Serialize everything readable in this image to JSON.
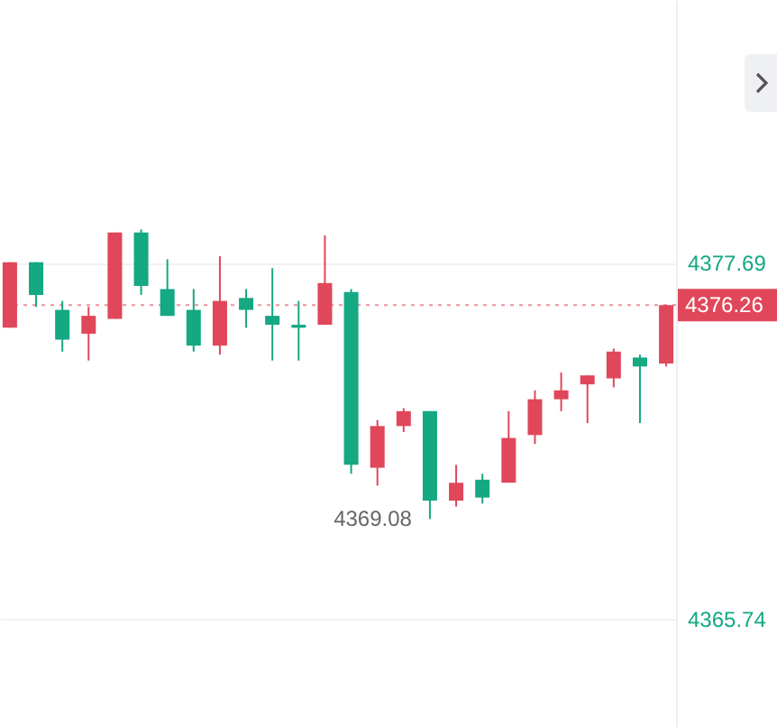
{
  "chart_data": {
    "type": "candlestick",
    "categories": [
      null,
      null,
      null,
      null,
      null,
      null,
      null,
      null,
      null,
      null,
      null,
      null,
      null,
      null,
      null,
      null,
      null,
      null,
      null,
      null,
      null,
      null,
      null,
      null,
      null,
      null
    ],
    "ohlc": [
      [
        4375.5,
        4377.7,
        4375.5,
        4377.7
      ],
      [
        4377.7,
        4377.7,
        4376.2,
        4376.6
      ],
      [
        4376.1,
        4376.4,
        4374.7,
        4375.1
      ],
      [
        4375.3,
        4376.2,
        4374.4,
        4375.9
      ],
      [
        4375.8,
        4378.7,
        4375.8,
        4378.7
      ],
      [
        4378.7,
        4378.8,
        4376.6,
        4376.9
      ],
      [
        4376.8,
        4377.8,
        4375.9,
        4375.9
      ],
      [
        4376.1,
        4376.8,
        4374.7,
        4374.9
      ],
      [
        4374.9,
        4377.9,
        4374.6,
        4376.4
      ],
      [
        4376.5,
        4376.8,
        4375.5,
        4376.1
      ],
      [
        4375.9,
        4377.5,
        4374.4,
        4375.6
      ],
      [
        4375.6,
        4376.4,
        4374.4,
        4375.5
      ],
      [
        4375.6,
        4378.6,
        4375.6,
        4377.0
      ],
      [
        4376.7,
        4376.8,
        4370.6,
        4370.9
      ],
      [
        4370.8,
        4372.4,
        4370.2,
        4372.2
      ],
      [
        4372.2,
        4372.8,
        4372.0,
        4372.7
      ],
      [
        4372.7,
        4372.7,
        4369.08,
        4369.7
      ],
      [
        4369.7,
        4370.9,
        4369.5,
        4370.3
      ],
      [
        4370.4,
        4370.6,
        4369.6,
        4369.8
      ],
      [
        4370.3,
        4372.7,
        4370.3,
        4371.8
      ],
      [
        4371.9,
        4373.4,
        4371.6,
        4373.1
      ],
      [
        4373.1,
        4374.0,
        4372.7,
        4373.4
      ],
      [
        4373.6,
        4373.9,
        4372.3,
        4373.9
      ],
      [
        4373.8,
        4374.8,
        4373.5,
        4374.7
      ],
      [
        4374.5,
        4374.6,
        4372.3,
        4374.2
      ],
      [
        4374.3,
        4376.26,
        4374.2,
        4376.26
      ]
    ],
    "colors": [
      "#e0475a",
      "#14a883",
      "#14a883",
      "#e0475a",
      "#e0475a",
      "#14a883",
      "#14a883",
      "#14a883",
      "#e0475a",
      "#14a883",
      "#14a883",
      "#14a883",
      "#e0475a",
      "#14a883",
      "#e0475a",
      "#e0475a",
      "#14a883",
      "#e0475a",
      "#14a883",
      "#e0475a",
      "#e0475a",
      "#e0475a",
      "#e0475a",
      "#e0475a",
      "#14a883",
      "#e0475a"
    ],
    "ylim": [
      4362.1,
      4386.5
    ],
    "yticks": [
      4377.69,
      4365.74
    ],
    "grid": "y",
    "ref_lines": [
      {
        "axis": "y",
        "value": 4376.26,
        "label": "4376.26",
        "color": "#e0475a",
        "line_style": "dotted"
      }
    ],
    "annotations": [
      "4369.08"
    ]
  }
}
